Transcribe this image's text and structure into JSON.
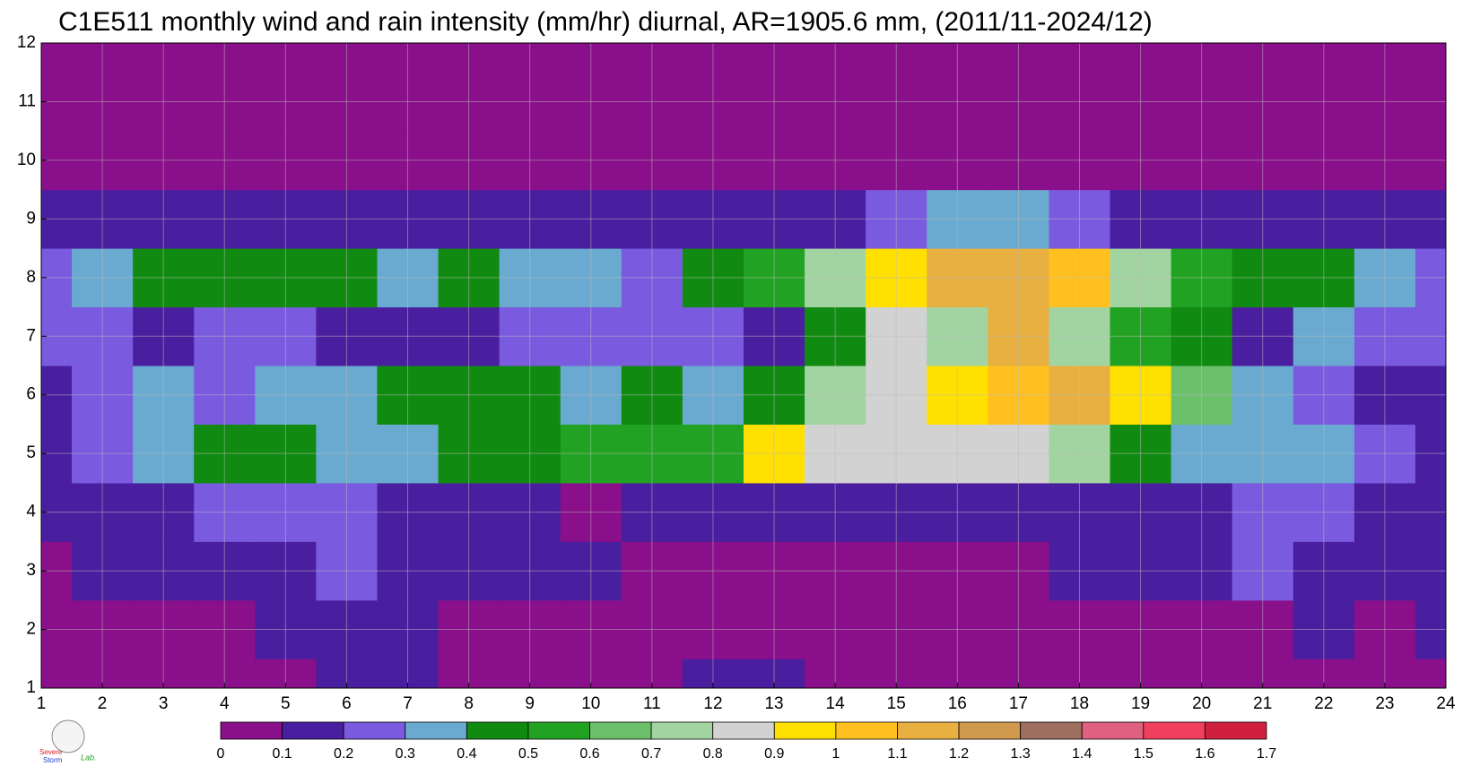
{
  "chart_data": {
    "type": "contour",
    "title": "C1E511 monthly wind and rain intensity (mm/hr) diurnal, AR=1905.6 mm, (2011/11-2024/12)",
    "x": [
      1,
      2,
      3,
      4,
      5,
      6,
      7,
      8,
      9,
      10,
      11,
      12,
      13,
      14,
      15,
      16,
      17,
      18,
      19,
      20,
      21,
      22,
      23,
      24
    ],
    "y": [
      1,
      2,
      3,
      4,
      5,
      6,
      7,
      8,
      9,
      10,
      11,
      12
    ],
    "z": [
      [
        0.05,
        0.05,
        0.05,
        0.05,
        0.08,
        0.12,
        0.12,
        0.05,
        0.05,
        0.05,
        0.05,
        0.12,
        0.15,
        0.06,
        0.06,
        0.06,
        0.06,
        0.06,
        0.06,
        0.06,
        0.06,
        0.06,
        0.06,
        0.06
      ],
      [
        0.05,
        0.08,
        0.05,
        0.05,
        0.12,
        0.12,
        0.12,
        0.08,
        0.05,
        0.06,
        0.07,
        0.06,
        0.06,
        0.06,
        0.06,
        0.06,
        0.06,
        0.06,
        0.06,
        0.06,
        0.08,
        0.12,
        0.08,
        0.12
      ],
      [
        0.08,
        0.12,
        0.12,
        0.12,
        0.12,
        0.2,
        0.12,
        0.12,
        0.12,
        0.12,
        0.08,
        0.07,
        0.07,
        0.07,
        0.07,
        0.07,
        0.08,
        0.12,
        0.12,
        0.15,
        0.22,
        0.15,
        0.12,
        0.12
      ],
      [
        0.12,
        0.15,
        0.18,
        0.2,
        0.2,
        0.25,
        0.15,
        0.13,
        0.13,
        0.08,
        0.12,
        0.15,
        0.15,
        0.15,
        0.15,
        0.15,
        0.15,
        0.15,
        0.15,
        0.12,
        0.2,
        0.25,
        0.15,
        0.12
      ],
      [
        0.15,
        0.28,
        0.3,
        0.42,
        0.42,
        0.3,
        0.35,
        0.42,
        0.45,
        0.55,
        0.52,
        0.5,
        0.9,
        0.85,
        0.8,
        0.8,
        0.85,
        0.75,
        0.4,
        0.35,
        0.32,
        0.3,
        0.2,
        0.15
      ],
      [
        0.15,
        0.25,
        0.32,
        0.25,
        0.3,
        0.32,
        0.45,
        0.45,
        0.42,
        0.38,
        0.42,
        0.35,
        0.45,
        0.75,
        0.85,
        0.95,
        1.0,
        1.15,
        0.95,
        0.6,
        0.35,
        0.2,
        0.15,
        0.15
      ],
      [
        0.28,
        0.22,
        0.15,
        0.22,
        0.22,
        0.15,
        0.15,
        0.15,
        0.22,
        0.25,
        0.22,
        0.22,
        0.15,
        0.45,
        0.85,
        0.7,
        1.1,
        0.7,
        0.5,
        0.45,
        0.18,
        0.32,
        0.28,
        0.22
      ],
      [
        0.25,
        0.32,
        0.42,
        0.42,
        0.42,
        0.42,
        0.38,
        0.42,
        0.32,
        0.3,
        0.28,
        0.42,
        0.5,
        0.7,
        0.95,
        1.1,
        1.1,
        1.0,
        0.75,
        0.55,
        0.45,
        0.42,
        0.35,
        0.25
      ],
      [
        0.12,
        0.15,
        0.1,
        0.1,
        0.12,
        0.1,
        0.1,
        0.1,
        0.1,
        0.11,
        0.1,
        0.1,
        0.13,
        0.18,
        0.25,
        0.35,
        0.3,
        0.2,
        0.18,
        0.15,
        0.14,
        0.13,
        0.1,
        0.1
      ],
      [
        0.05,
        0.05,
        0.05,
        0.05,
        0.05,
        0.05,
        0.05,
        0.05,
        0.05,
        0.05,
        0.05,
        0.05,
        0.05,
        0.06,
        0.06,
        0.08,
        0.08,
        0.06,
        0.05,
        0.05,
        0.05,
        0.05,
        0.05,
        0.05
      ],
      [
        0.05,
        0.05,
        0.05,
        0.05,
        0.05,
        0.05,
        0.05,
        0.05,
        0.05,
        0.05,
        0.05,
        0.05,
        0.05,
        0.05,
        0.05,
        0.05,
        0.05,
        0.05,
        0.05,
        0.05,
        0.05,
        0.05,
        0.05,
        0.05
      ],
      [
        0.05,
        0.05,
        0.05,
        0.05,
        0.05,
        0.05,
        0.05,
        0.05,
        0.05,
        0.05,
        0.05,
        0.05,
        0.05,
        0.05,
        0.05,
        0.05,
        0.05,
        0.05,
        0.05,
        0.05,
        0.05,
        0.05,
        0.05,
        0.05
      ]
    ],
    "xlim": [
      1,
      24
    ],
    "xticks": [
      1,
      2,
      3,
      4,
      5,
      6,
      7,
      8,
      9,
      10,
      11,
      12,
      13,
      14,
      15,
      16,
      17,
      18,
      19,
      20,
      21,
      22,
      23,
      24
    ],
    "ylim": [
      1,
      12
    ],
    "yticks": [
      1,
      2,
      3,
      4,
      5,
      6,
      7,
      8,
      9,
      10,
      11,
      12
    ],
    "grid": true,
    "colorbar": {
      "levels": [
        0,
        0.1,
        0.2,
        0.3,
        0.4,
        0.5,
        0.6,
        0.7,
        0.8,
        0.9,
        1,
        1.1,
        1.2,
        1.3,
        1.4,
        1.5,
        1.6,
        1.7
      ],
      "colors": [
        "#8a0f8a",
        "#4a1f9f",
        "#7a5be0",
        "#6aaad0",
        "#108a10",
        "#22a222",
        "#6cc06c",
        "#a2d4a2",
        "#d2d2d2",
        "#ffe000",
        "#ffc020",
        "#e8b040",
        "#cf9a4e",
        "#9e6e5e",
        "#e06080",
        "#f04060",
        "#d02040"
      ]
    },
    "logo": {
      "line1": "Severe",
      "line2": "Storm",
      "line3": "Lab."
    }
  }
}
